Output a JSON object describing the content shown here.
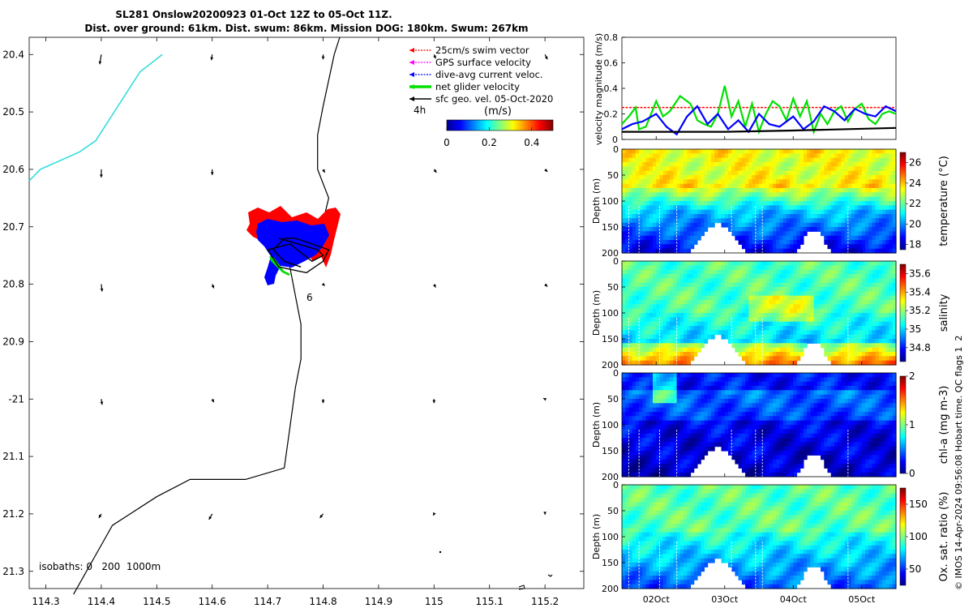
{
  "title_line1": "SL281 Onslow20200923 01-Oct 12Z to 05-Oct 11Z.",
  "title_line2": "Dist. over ground: 61km. Dist. swum: 86km. Mission DOG: 180km. Swum: 267km",
  "credit": "© IMOS 14-Apr-2024 09:56:08 Hobart time. QC flags 1  2",
  "colors": {
    "swim": "#ff0000",
    "gps": "#ff00ff",
    "current": "#0000ff",
    "net": "#00e000",
    "geo": "#000000",
    "coast": "#33dddd",
    "track": "#000000"
  },
  "chart_data": [
    {
      "type": "map",
      "xlim": [
        114.27,
        115.27
      ],
      "ylim": [
        -21.33,
        -20.37
      ],
      "xticks": [
        114.3,
        114.4,
        114.5,
        114.6,
        114.7,
        114.8,
        114.9,
        115,
        115.1,
        115.2
      ],
      "xtick_labels": [
        "114.3",
        "114.4",
        "114.5",
        "114.6",
        "114.7",
        "114.8",
        "114.9",
        "115",
        "115.1",
        "115.2"
      ],
      "yticks": [
        -20.4,
        -20.5,
        -20.6,
        -20.7,
        -20.8,
        -20.9,
        -21,
        -21.1,
        -21.2,
        -21.3
      ],
      "ytick_labels": [
        "20.4",
        "20.5",
        "20.6",
        "20.7",
        "20.8",
        "20.9",
        "-21",
        "21.1",
        "21.2",
        "21.3"
      ],
      "legend": [
        {
          "label": "25cm/s swim vector",
          "color": "#ff0000",
          "style": "dotted"
        },
        {
          "label": "GPS surface velocity",
          "color": "#ff00ff",
          "style": "dotted"
        },
        {
          "label": "dive-avg current veloc.",
          "color": "#0000ff",
          "style": "dotted"
        },
        {
          "label": "net glider velocity",
          "color": "#00e000",
          "style": "thick"
        },
        {
          "label": "sfc geo. vel. 05-Oct-2020",
          "color": "#000000",
          "style": "solid"
        }
      ],
      "annotation_4h": "4h",
      "annotation_6": "6",
      "colorbar": {
        "label": "(m/s)",
        "range": [
          0,
          0.5
        ],
        "ticks": [
          0,
          0.2,
          0.4
        ],
        "tick_labels": [
          "0",
          "0.2",
          "0.4"
        ]
      },
      "isobaths_label": "isobaths: 0   200  1000m",
      "isobath_200": [
        [
          114.35,
          -21.34
        ],
        [
          114.42,
          -21.22
        ],
        [
          114.5,
          -21.17
        ],
        [
          114.56,
          -21.14
        ],
        [
          114.66,
          -21.14
        ],
        [
          114.73,
          -21.12
        ],
        [
          114.74,
          -21.05
        ],
        [
          114.75,
          -20.98
        ],
        [
          114.76,
          -20.93
        ],
        [
          114.76,
          -20.87
        ],
        [
          114.75,
          -20.82
        ],
        [
          114.74,
          -20.77
        ],
        [
          114.73,
          -20.75
        ],
        [
          114.76,
          -20.72
        ],
        [
          114.8,
          -20.69
        ],
        [
          114.81,
          -20.65
        ],
        [
          114.79,
          -20.6
        ],
        [
          114.79,
          -20.54
        ],
        [
          114.8,
          -20.49
        ],
        [
          114.82,
          -20.4
        ],
        [
          114.83,
          -20.37
        ]
      ],
      "coastline": [
        [
          114.27,
          -20.62
        ],
        [
          114.29,
          -20.6
        ],
        [
          114.36,
          -20.57
        ],
        [
          114.39,
          -20.55
        ],
        [
          114.43,
          -20.49
        ],
        [
          114.47,
          -20.43
        ],
        [
          114.51,
          -20.4
        ]
      ],
      "glider_track": [
        [
          114.72,
          -20.72
        ],
        [
          114.79,
          -20.74
        ],
        [
          114.8,
          -20.75
        ],
        [
          114.78,
          -20.76
        ],
        [
          114.74,
          -20.73
        ],
        [
          114.7,
          -20.74
        ],
        [
          114.72,
          -20.77
        ],
        [
          114.77,
          -20.78
        ],
        [
          114.8,
          -20.76
        ],
        [
          114.81,
          -20.74
        ],
        [
          114.75,
          -20.72
        ],
        [
          114.73,
          -20.72
        ],
        [
          114.71,
          -20.74
        ],
        [
          114.73,
          -20.76
        ],
        [
          114.76,
          -20.77
        ]
      ],
      "geo_vectors": [
        {
          "lon": 114.4,
          "lat": -20.4,
          "u": -0.02,
          "v": -0.12
        },
        {
          "lon": 114.6,
          "lat": -20.4,
          "u": -0.01,
          "v": -0.07
        },
        {
          "lon": 114.8,
          "lat": -20.4,
          "u": 0.0,
          "v": -0.06
        },
        {
          "lon": 115.0,
          "lat": -20.4,
          "u": 0.02,
          "v": -0.05
        },
        {
          "lon": 115.2,
          "lat": -20.4,
          "u": 0.03,
          "v": -0.06
        },
        {
          "lon": 114.4,
          "lat": -20.6,
          "u": 0.0,
          "v": -0.1
        },
        {
          "lon": 114.6,
          "lat": -20.6,
          "u": 0.0,
          "v": -0.07
        },
        {
          "lon": 114.8,
          "lat": -20.6,
          "u": 0.02,
          "v": -0.04
        },
        {
          "lon": 115.0,
          "lat": -20.6,
          "u": 0.03,
          "v": -0.04
        },
        {
          "lon": 115.2,
          "lat": -20.6,
          "u": 0.03,
          "v": -0.03
        },
        {
          "lon": 114.4,
          "lat": -20.8,
          "u": 0.01,
          "v": -0.09
        },
        {
          "lon": 114.6,
          "lat": -20.8,
          "u": 0.02,
          "v": -0.05
        },
        {
          "lon": 114.8,
          "lat": -20.8,
          "u": 0.02,
          "v": -0.02
        },
        {
          "lon": 115.0,
          "lat": -20.8,
          "u": 0.02,
          "v": -0.04
        },
        {
          "lon": 115.2,
          "lat": -20.8,
          "u": 0.03,
          "v": -0.03
        },
        {
          "lon": 114.4,
          "lat": -21.0,
          "u": 0.01,
          "v": -0.07
        },
        {
          "lon": 114.6,
          "lat": -21.0,
          "u": 0.02,
          "v": -0.04
        },
        {
          "lon": 114.8,
          "lat": -21.0,
          "u": 0.0,
          "v": -0.05
        },
        {
          "lon": 115.0,
          "lat": -21.0,
          "u": 0.0,
          "v": -0.05
        },
        {
          "lon": 115.2,
          "lat": -21.0,
          "u": -0.02,
          "v": 0.01
        },
        {
          "lon": 114.4,
          "lat": -21.2,
          "u": -0.03,
          "v": -0.05
        },
        {
          "lon": 114.6,
          "lat": -21.2,
          "u": -0.04,
          "v": -0.07
        },
        {
          "lon": 114.8,
          "lat": -21.2,
          "u": -0.04,
          "v": -0.05
        },
        {
          "lon": 115.0,
          "lat": -21.2,
          "u": -0.01,
          "v": -0.02
        },
        {
          "lon": 115.2,
          "lat": -21.2,
          "u": 0.0,
          "v": -0.01
        }
      ]
    },
    {
      "type": "line",
      "ylabel": "velocity magnitude (m/s)",
      "ylim": [
        0,
        0.8
      ],
      "yticks": [
        0,
        0.2,
        0.4,
        0.6,
        0.8
      ],
      "ytick_labels": [
        "0",
        "0.2",
        "0.4",
        "0.6",
        "0.8"
      ],
      "xlim": [
        1.5,
        5.5
      ],
      "series": [
        {
          "name": "net glider velocity",
          "color": "#00e000",
          "x": [
            1.5,
            1.6,
            1.7,
            1.75,
            1.85,
            2.0,
            2.1,
            2.2,
            2.35,
            2.5,
            2.6,
            2.7,
            2.8,
            2.9,
            3.0,
            3.1,
            3.2,
            3.3,
            3.4,
            3.5,
            3.6,
            3.7,
            3.8,
            3.9,
            4.0,
            4.1,
            4.2,
            4.3,
            4.4,
            4.5,
            4.6,
            4.7,
            4.8,
            4.9,
            5.0,
            5.1,
            5.2,
            5.3,
            5.4,
            5.5
          ],
          "y": [
            0.12,
            0.18,
            0.25,
            0.08,
            0.1,
            0.3,
            0.18,
            0.22,
            0.34,
            0.28,
            0.15,
            0.12,
            0.1,
            0.2,
            0.42,
            0.18,
            0.3,
            0.1,
            0.28,
            0.06,
            0.2,
            0.3,
            0.26,
            0.15,
            0.32,
            0.18,
            0.3,
            0.06,
            0.2,
            0.12,
            0.22,
            0.26,
            0.14,
            0.24,
            0.28,
            0.16,
            0.12,
            0.2,
            0.22,
            0.2
          ]
        },
        {
          "name": "dive-avg current veloc.",
          "color": "#0000ff",
          "x": [
            1.5,
            1.65,
            1.8,
            2.0,
            2.15,
            2.3,
            2.45,
            2.6,
            2.75,
            2.9,
            3.05,
            3.2,
            3.35,
            3.5,
            3.65,
            3.8,
            4.0,
            4.15,
            4.3,
            4.45,
            4.6,
            4.75,
            4.9,
            5.05,
            5.2,
            5.35,
            5.5
          ],
          "y": [
            0.08,
            0.12,
            0.14,
            0.2,
            0.1,
            0.04,
            0.18,
            0.26,
            0.12,
            0.2,
            0.08,
            0.15,
            0.06,
            0.2,
            0.12,
            0.1,
            0.18,
            0.08,
            0.14,
            0.26,
            0.22,
            0.15,
            0.24,
            0.2,
            0.18,
            0.26,
            0.22
          ]
        },
        {
          "name": "25cm/s swim vector",
          "color": "#ff0000",
          "x": [
            1.5,
            5.5
          ],
          "y": [
            0.25,
            0.25
          ]
        },
        {
          "name": "sfc geo. vel.",
          "color": "#000000",
          "x": [
            1.5,
            3.0,
            4.0,
            5.5
          ],
          "y": [
            0.06,
            0.06,
            0.07,
            0.09
          ]
        }
      ]
    },
    {
      "type": "heatmap",
      "ylabel": "Depth (m)",
      "ylim": [
        0,
        200
      ],
      "yticks": [
        0,
        50,
        100,
        150,
        200
      ],
      "ytick_labels": [
        "0",
        "50",
        "100",
        "150",
        "200"
      ],
      "colorbar_label": "temperature (°C)",
      "colorbar_ticks": [
        18,
        20,
        22,
        24,
        26
      ],
      "colorbar_tick_labels": [
        "18",
        "20",
        "22",
        "24",
        "26"
      ],
      "crange": [
        17.5,
        27
      ]
    },
    {
      "type": "heatmap",
      "ylabel": "Depth (m)",
      "ylim": [
        0,
        200
      ],
      "yticks": [
        0,
        50,
        100,
        150,
        200
      ],
      "ytick_labels": [
        "0",
        "50",
        "100",
        "150",
        "200"
      ],
      "colorbar_label": "salinity",
      "colorbar_ticks": [
        34.8,
        35,
        35.2,
        35.4,
        35.6
      ],
      "colorbar_tick_labels": [
        "34.8",
        "35",
        "35.2",
        "35.4",
        "35.6"
      ],
      "crange": [
        34.65,
        35.7
      ]
    },
    {
      "type": "heatmap",
      "ylabel": "Depth (m)",
      "ylim": [
        0,
        200
      ],
      "yticks": [
        0,
        50,
        100,
        150,
        200
      ],
      "ytick_labels": [
        "0",
        "50",
        "100",
        "150",
        "200"
      ],
      "colorbar_label": "chl-a (mg m-3)",
      "colorbar_ticks": [
        0,
        1,
        2
      ],
      "colorbar_tick_labels": [
        "0",
        "1",
        "2"
      ],
      "crange": [
        0,
        2
      ]
    },
    {
      "type": "heatmap",
      "ylabel": "Depth (m)",
      "ylim": [
        0,
        200
      ],
      "yticks": [
        0,
        50,
        100,
        150,
        200
      ],
      "ytick_labels": [
        "0",
        "50",
        "100",
        "150",
        "200"
      ],
      "colorbar_label": "Ox. sat. ratio (%)",
      "colorbar_ticks": [
        50,
        100,
        150
      ],
      "colorbar_tick_labels": [
        "50",
        "100",
        "150"
      ],
      "crange": [
        25,
        175
      ],
      "xlim": [
        1.5,
        5.5
      ],
      "xticks": [
        2,
        3,
        4,
        5
      ],
      "xtick_labels": [
        "02Oct",
        "03Oct",
        "04Oct",
        "05Oct"
      ]
    }
  ]
}
